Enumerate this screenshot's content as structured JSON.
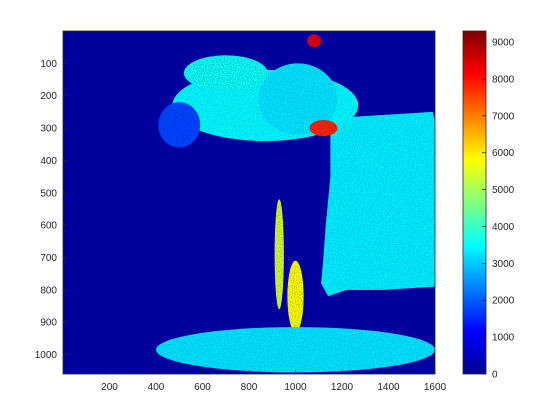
{
  "chart_data": {
    "type": "heatmap",
    "title": "",
    "xlabel": "",
    "ylabel": "",
    "xlim": [
      0,
      1600
    ],
    "ylim": [
      1060,
      0
    ],
    "x_ticks": [
      200,
      400,
      600,
      800,
      1000,
      1200,
      1400,
      1600
    ],
    "y_ticks": [
      100,
      200,
      300,
      400,
      500,
      600,
      700,
      800,
      900,
      1000
    ],
    "x_tick_labels": [
      "200",
      "400",
      "600",
      "800",
      "1000",
      "1200",
      "1400",
      "1600"
    ],
    "y_tick_labels": [
      "100",
      "200",
      "300",
      "400",
      "500",
      "600",
      "700",
      "800",
      "900",
      "1000"
    ],
    "colormap": "jet",
    "colorbar": {
      "range": [
        0,
        9300
      ],
      "ticks": [
        0,
        1000,
        2000,
        3000,
        4000,
        5000,
        6000,
        7000,
        8000,
        9000
      ],
      "tick_labels": [
        "0",
        "1000",
        "2000",
        "3000",
        "4000",
        "5000",
        "6000",
        "7000",
        "8000",
        "9000"
      ]
    },
    "background_value": 300,
    "regions": [
      {
        "shape": "polygon",
        "value": 3400,
        "points": [
          [
            1140,
            270
          ],
          [
            1590,
            250
          ],
          [
            1600,
            280
          ],
          [
            1600,
            790
          ],
          [
            1380,
            800
          ],
          [
            1220,
            800
          ],
          [
            1140,
            820
          ],
          [
            1110,
            780
          ],
          [
            1120,
            700
          ],
          [
            1130,
            600
          ],
          [
            1150,
            450
          ],
          [
            1150,
            330
          ]
        ]
      },
      {
        "shape": "ellipse",
        "value": 3500,
        "cx": 870,
        "cy": 230,
        "rx": 400,
        "ry": 110
      },
      {
        "shape": "ellipse",
        "value": 3600,
        "cx": 700,
        "cy": 130,
        "rx": 180,
        "ry": 55
      },
      {
        "shape": "ellipse",
        "value": 3300,
        "cx": 1010,
        "cy": 210,
        "rx": 170,
        "ry": 110
      },
      {
        "shape": "ellipse",
        "value": 1800,
        "cx": 500,
        "cy": 290,
        "rx": 90,
        "ry": 70
      },
      {
        "shape": "ellipse",
        "value": 5800,
        "cx": 1000,
        "cy": 820,
        "rx": 35,
        "ry": 110
      },
      {
        "shape": "ellipse",
        "value": 5400,
        "cx": 930,
        "cy": 690,
        "rx": 20,
        "ry": 170
      },
      {
        "shape": "ellipse",
        "value": 7800,
        "cx": 1120,
        "cy": 300,
        "rx": 60,
        "ry": 25
      },
      {
        "shape": "ellipse",
        "value": 8400,
        "cx": 1080,
        "cy": 30,
        "rx": 30,
        "ry": 20
      },
      {
        "shape": "ellipse",
        "value": 3300,
        "cx": 1000,
        "cy": 985,
        "rx": 600,
        "ry": 70
      }
    ]
  }
}
